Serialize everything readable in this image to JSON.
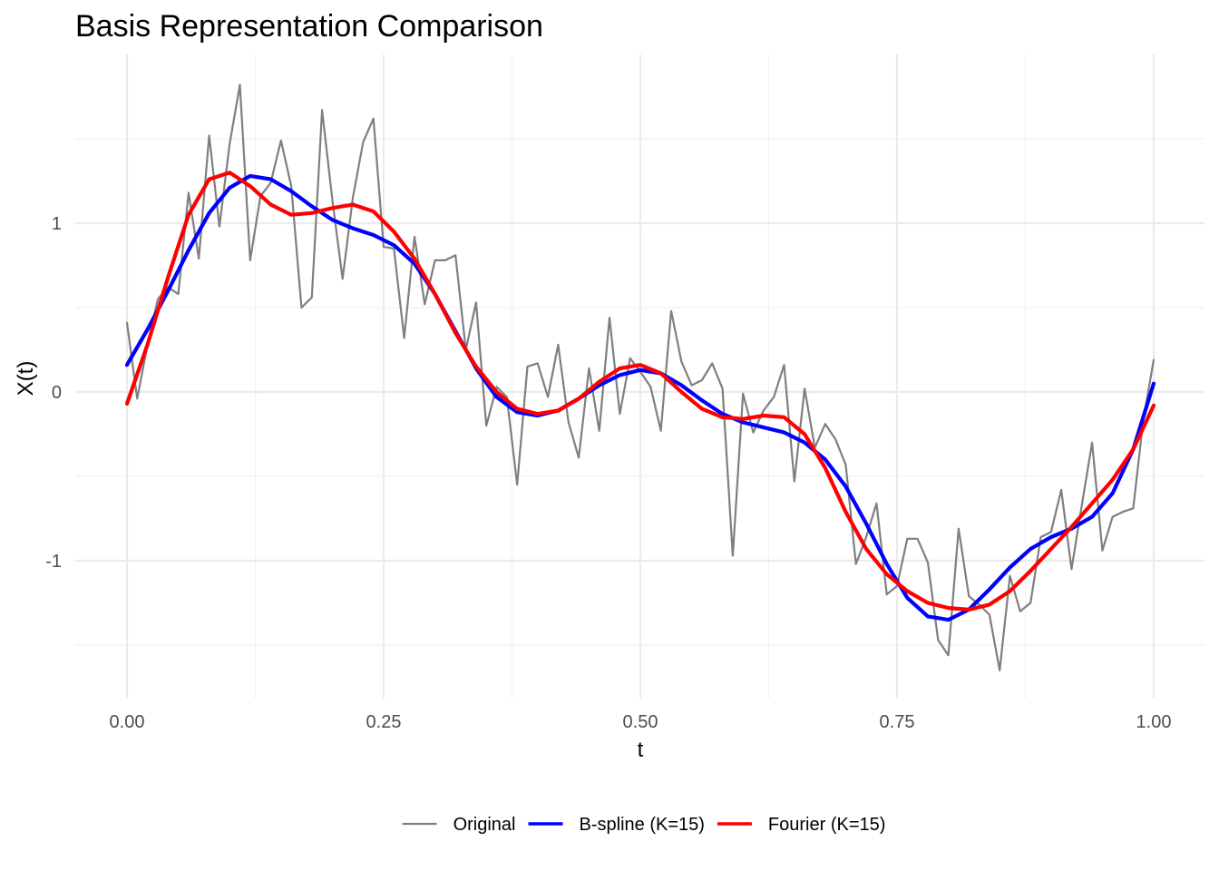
{
  "chart_data": {
    "type": "line",
    "title": "Basis Representation Comparison",
    "xlabel": "t",
    "ylabel": "X(t)",
    "xlim": [
      -0.05,
      1.05
    ],
    "ylim": [
      -1.8,
      2.0
    ],
    "x_ticks": [
      0,
      0.25,
      0.5,
      0.75,
      1
    ],
    "x_tick_labels": [
      "0.00",
      "0.25",
      "0.50",
      "0.75",
      "1.00"
    ],
    "y_ticks": [
      -1,
      0,
      1
    ],
    "y_tick_labels": [
      "-1",
      "0",
      "1"
    ],
    "grid": true,
    "legend_position": "bottom",
    "series": [
      {
        "name": "Original",
        "color": "#7f7f7f",
        "width": "thin",
        "x": [
          0,
          0.01,
          0.02,
          0.03,
          0.04,
          0.05,
          0.06,
          0.07,
          0.08,
          0.09,
          0.1,
          0.11,
          0.12,
          0.13,
          0.14,
          0.15,
          0.16,
          0.17,
          0.18,
          0.19,
          0.2,
          0.21,
          0.22,
          0.23,
          0.24,
          0.25,
          0.26,
          0.27,
          0.28,
          0.29,
          0.3,
          0.31,
          0.32,
          0.33,
          0.34,
          0.35,
          0.36,
          0.37,
          0.38,
          0.39,
          0.4,
          0.41,
          0.42,
          0.43,
          0.44,
          0.45,
          0.46,
          0.47,
          0.48,
          0.49,
          0.5,
          0.51,
          0.52,
          0.53,
          0.54,
          0.55,
          0.56,
          0.57,
          0.58,
          0.59,
          0.6,
          0.61,
          0.62,
          0.63,
          0.64,
          0.65,
          0.66,
          0.67,
          0.68,
          0.69,
          0.7,
          0.71,
          0.72,
          0.73,
          0.74,
          0.75,
          0.76,
          0.77,
          0.78,
          0.79,
          0.8,
          0.81,
          0.82,
          0.83,
          0.84,
          0.85,
          0.86,
          0.87,
          0.88,
          0.89,
          0.9,
          0.91,
          0.92,
          0.93,
          0.94,
          0.95,
          0.96,
          0.97,
          0.98,
          0.99,
          1.0
        ],
        "y": [
          0.41,
          -0.04,
          0.28,
          0.55,
          0.62,
          0.58,
          1.18,
          0.79,
          1.52,
          0.98,
          1.47,
          1.82,
          0.78,
          1.16,
          1.24,
          1.49,
          1.22,
          0.5,
          0.56,
          1.67,
          1.14,
          0.67,
          1.15,
          1.48,
          1.62,
          0.86,
          0.85,
          0.32,
          0.92,
          0.52,
          0.78,
          0.78,
          0.81,
          0.25,
          0.53,
          -0.2,
          0.03,
          -0.03,
          -0.55,
          0.15,
          0.17,
          -0.03,
          0.28,
          -0.18,
          -0.39,
          0.14,
          -0.23,
          0.44,
          -0.13,
          0.2,
          0.12,
          0.03,
          -0.23,
          0.48,
          0.18,
          0.04,
          0.07,
          0.17,
          0.02,
          -0.97,
          -0.01,
          -0.24,
          -0.11,
          -0.03,
          0.16,
          -0.53,
          0.02,
          -0.33,
          -0.19,
          -0.28,
          -0.43,
          -1.02,
          -0.86,
          -0.66,
          -1.2,
          -1.15,
          -0.87,
          -0.87,
          -1.01,
          -1.47,
          -1.56,
          -0.81,
          -1.21,
          -1.26,
          -1.32,
          -1.65,
          -1.09,
          -1.3,
          -1.25,
          -0.86,
          -0.83,
          -0.58,
          -1.05,
          -0.67,
          -0.3,
          -0.94,
          -0.74,
          -0.71,
          -0.69,
          -0.16,
          0.19
        ]
      },
      {
        "name": "B-spline (K=15)",
        "color": "#0000ff",
        "width": "thick",
        "x": [
          0,
          0.02,
          0.04,
          0.06,
          0.08,
          0.1,
          0.12,
          0.14,
          0.16,
          0.18,
          0.2,
          0.22,
          0.24,
          0.26,
          0.28,
          0.3,
          0.32,
          0.34,
          0.36,
          0.38,
          0.4,
          0.42,
          0.44,
          0.46,
          0.48,
          0.5,
          0.52,
          0.54,
          0.56,
          0.58,
          0.6,
          0.62,
          0.64,
          0.66,
          0.68,
          0.7,
          0.72,
          0.74,
          0.76,
          0.78,
          0.8,
          0.82,
          0.84,
          0.86,
          0.88,
          0.9,
          0.92,
          0.94,
          0.96,
          0.98,
          1.0
        ],
        "y": [
          0.16,
          0.37,
          0.6,
          0.84,
          1.06,
          1.21,
          1.28,
          1.26,
          1.19,
          1.1,
          1.02,
          0.97,
          0.93,
          0.87,
          0.76,
          0.58,
          0.36,
          0.14,
          -0.03,
          -0.12,
          -0.14,
          -0.11,
          -0.04,
          0.04,
          0.1,
          0.13,
          0.11,
          0.04,
          -0.05,
          -0.13,
          -0.18,
          -0.21,
          -0.24,
          -0.3,
          -0.4,
          -0.56,
          -0.78,
          -1.02,
          -1.22,
          -1.33,
          -1.35,
          -1.29,
          -1.17,
          -1.04,
          -0.93,
          -0.86,
          -0.81,
          -0.74,
          -0.6,
          -0.34,
          0.05
        ]
      },
      {
        "name": "Fourier (K=15)",
        "color": "#ff0000",
        "width": "thick",
        "x": [
          0,
          0.02,
          0.04,
          0.06,
          0.08,
          0.1,
          0.12,
          0.14,
          0.16,
          0.18,
          0.2,
          0.22,
          0.24,
          0.26,
          0.28,
          0.3,
          0.32,
          0.34,
          0.36,
          0.38,
          0.4,
          0.42,
          0.44,
          0.46,
          0.48,
          0.5,
          0.52,
          0.54,
          0.56,
          0.58,
          0.6,
          0.62,
          0.64,
          0.66,
          0.68,
          0.7,
          0.72,
          0.74,
          0.76,
          0.78,
          0.8,
          0.82,
          0.84,
          0.86,
          0.88,
          0.9,
          0.92,
          0.94,
          0.96,
          0.98,
          1.0
        ],
        "y": [
          -0.07,
          0.28,
          0.68,
          1.05,
          1.26,
          1.3,
          1.22,
          1.11,
          1.05,
          1.06,
          1.09,
          1.11,
          1.07,
          0.95,
          0.79,
          0.58,
          0.35,
          0.15,
          0.0,
          -0.1,
          -0.13,
          -0.11,
          -0.04,
          0.06,
          0.14,
          0.16,
          0.11,
          0.0,
          -0.1,
          -0.15,
          -0.16,
          -0.14,
          -0.15,
          -0.25,
          -0.45,
          -0.71,
          -0.93,
          -1.08,
          -1.18,
          -1.25,
          -1.28,
          -1.29,
          -1.26,
          -1.18,
          -1.06,
          -0.93,
          -0.8,
          -0.66,
          -0.52,
          -0.34,
          -0.08
        ]
      }
    ]
  }
}
